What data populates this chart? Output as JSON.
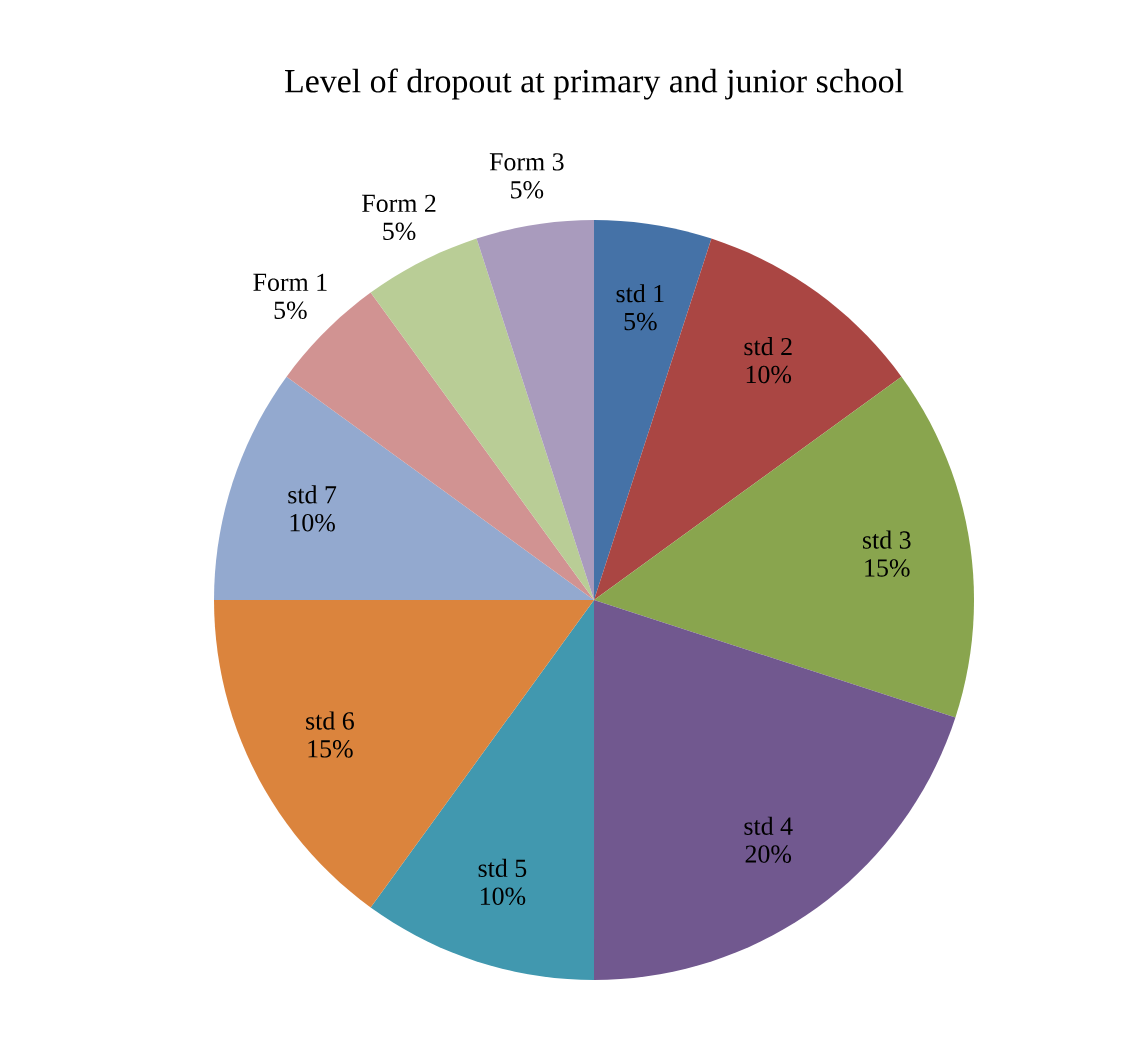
{
  "chart_data": {
    "type": "pie",
    "title": "Level of dropout at primary and junior school",
    "categories": [
      "std 1",
      "std 2",
      "std 3",
      "std 4",
      "std 5",
      "std 6",
      "std 7",
      "Form 1",
      "Form 2",
      "Form 3"
    ],
    "values": [
      5,
      10,
      15,
      20,
      10,
      15,
      10,
      5,
      5,
      5
    ],
    "value_labels": [
      "5%",
      "10%",
      "15%",
      "20%",
      "10%",
      "15%",
      "10%",
      "5%",
      "5%",
      "5%"
    ],
    "colors": [
      "#4572a7",
      "#aa4643",
      "#89a54e",
      "#71588f",
      "#4198af",
      "#db843d",
      "#93a9cf",
      "#d19392",
      "#b9cd96",
      "#a99bbd"
    ]
  }
}
